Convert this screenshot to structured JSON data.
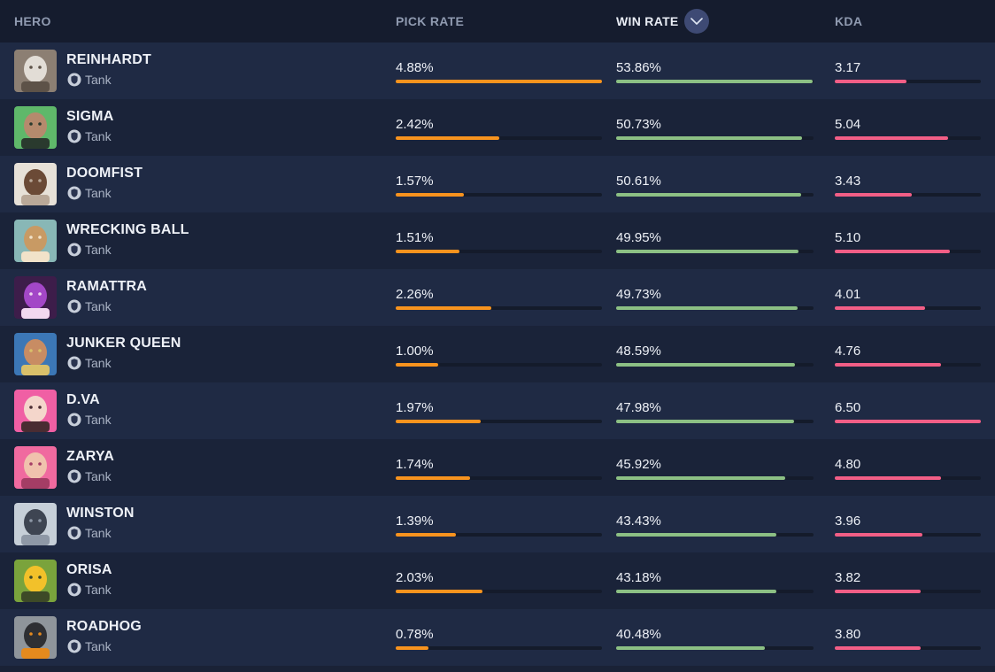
{
  "header": {
    "hero": "HERO",
    "pick_rate": "PICK RATE",
    "win_rate": "WIN RATE",
    "kda": "KDA",
    "sort_icon": "chevron-down-icon"
  },
  "colors": {
    "pick_bar": "#f7931e",
    "win_bar": "#8cc084",
    "kda_bar": "#f25e86",
    "track": "#141b2b"
  },
  "heroes": [
    {
      "name": "REINHARDT",
      "role": "Tank",
      "pick": "4.88%",
      "win": "53.86%",
      "kda": "3.17",
      "pick_frac": 1.0,
      "win_frac": 0.995,
      "kda_frac": 0.49,
      "portrait": [
        "#8c7f73",
        "#e2ddd6",
        "#5d5248"
      ]
    },
    {
      "name": "SIGMA",
      "role": "Tank",
      "pick": "2.42%",
      "win": "50.73%",
      "kda": "5.04",
      "pick_frac": 0.5,
      "win_frac": 0.94,
      "kda_frac": 0.775,
      "portrait": [
        "#5fb86a",
        "#b58a6d",
        "#2a3a2e"
      ]
    },
    {
      "name": "DOOMFIST",
      "role": "Tank",
      "pick": "1.57%",
      "win": "50.61%",
      "kda": "3.43",
      "pick_frac": 0.33,
      "win_frac": 0.935,
      "kda_frac": 0.53,
      "portrait": [
        "#e7e1d8",
        "#6b4a36",
        "#b9a898"
      ]
    },
    {
      "name": "WRECKING BALL",
      "role": "Tank",
      "pick": "1.51%",
      "win": "49.95%",
      "kda": "5.10",
      "pick_frac": 0.31,
      "win_frac": 0.925,
      "kda_frac": 0.785,
      "portrait": [
        "#88b7b6",
        "#c89a64",
        "#f1e2c9"
      ]
    },
    {
      "name": "RAMATTRA",
      "role": "Tank",
      "pick": "2.26%",
      "win": "49.73%",
      "kda": "4.01",
      "pick_frac": 0.465,
      "win_frac": 0.92,
      "kda_frac": 0.62,
      "portrait": [
        "#3d1d4a",
        "#a347c7",
        "#f1d8f0"
      ]
    },
    {
      "name": "JUNKER QUEEN",
      "role": "Tank",
      "pick": "1.00%",
      "win": "48.59%",
      "kda": "4.76",
      "pick_frac": 0.205,
      "win_frac": 0.905,
      "kda_frac": 0.73,
      "portrait": [
        "#3c77b6",
        "#c88c63",
        "#d9c06a"
      ]
    },
    {
      "name": "D.VA",
      "role": "Tank",
      "pick": "1.97%",
      "win": "47.98%",
      "kda": "6.50",
      "pick_frac": 0.41,
      "win_frac": 0.9,
      "kda_frac": 1.0,
      "portrait": [
        "#f05fa4",
        "#f4d6cb",
        "#4a2c32"
      ]
    },
    {
      "name": "ZARYA",
      "role": "Tank",
      "pick": "1.74%",
      "win": "45.92%",
      "kda": "4.80",
      "pick_frac": 0.36,
      "win_frac": 0.855,
      "kda_frac": 0.73,
      "portrait": [
        "#f06a9f",
        "#f0c2ad",
        "#a43d65"
      ]
    },
    {
      "name": "WINSTON",
      "role": "Tank",
      "pick": "1.39%",
      "win": "43.43%",
      "kda": "3.96",
      "pick_frac": 0.29,
      "win_frac": 0.81,
      "kda_frac": 0.6,
      "portrait": [
        "#c6cfd8",
        "#3e4552",
        "#8e98a6"
      ]
    },
    {
      "name": "ORISA",
      "role": "Tank",
      "pick": "2.03%",
      "win": "43.18%",
      "kda": "3.82",
      "pick_frac": 0.42,
      "win_frac": 0.81,
      "kda_frac": 0.585,
      "portrait": [
        "#7aa33c",
        "#f2c12a",
        "#3d4a27"
      ]
    },
    {
      "name": "ROADHOG",
      "role": "Tank",
      "pick": "0.78%",
      "win": "40.48%",
      "kda": "3.80",
      "pick_frac": 0.16,
      "win_frac": 0.755,
      "kda_frac": 0.585,
      "portrait": [
        "#8f959b",
        "#2e2f33",
        "#e58a1e"
      ]
    }
  ]
}
